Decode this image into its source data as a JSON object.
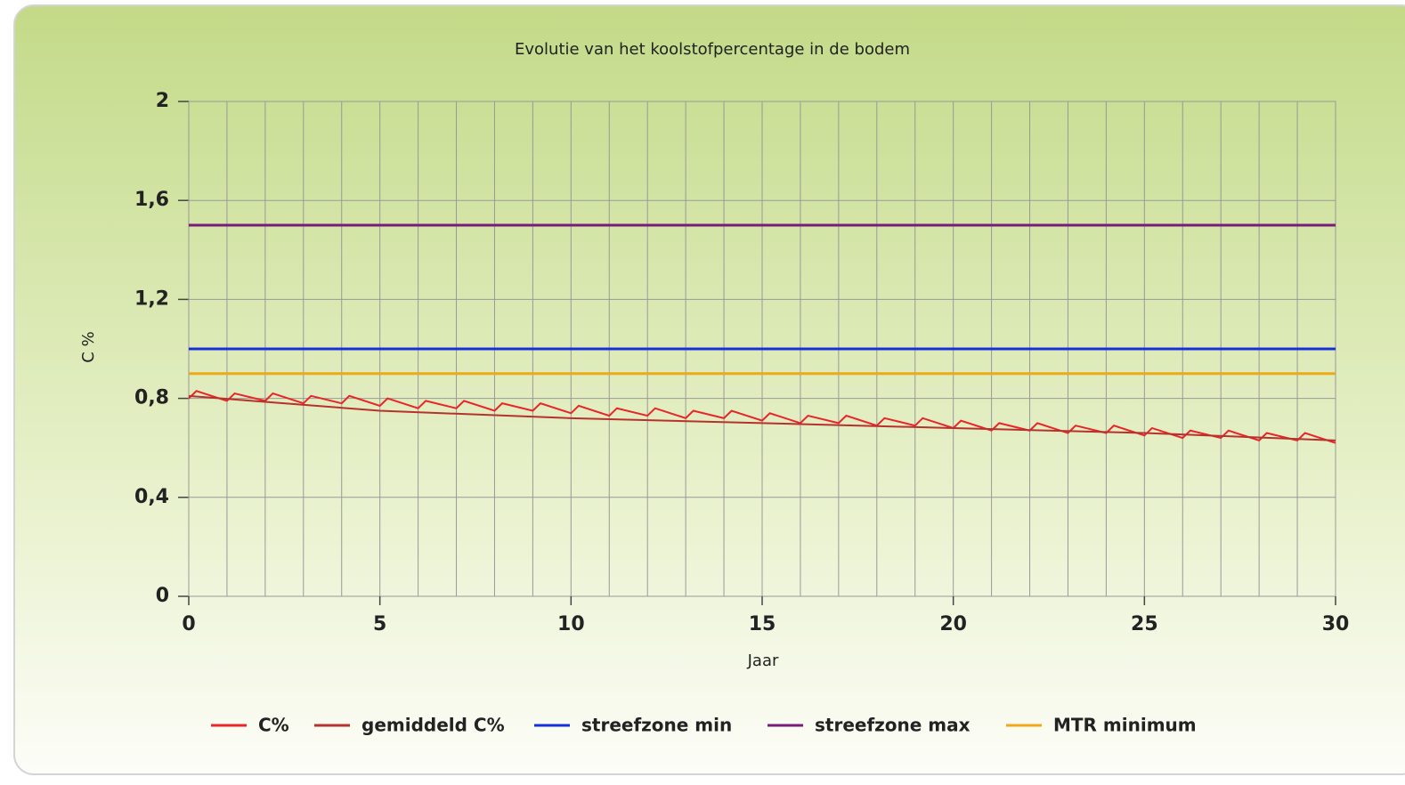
{
  "chart_data": {
    "type": "line",
    "title": "Evolutie van het koolstofpercentage in de bodem",
    "xlabel": "Jaar",
    "ylabel": "C %",
    "xlim": [
      0,
      30
    ],
    "xticks": [
      0,
      5,
      10,
      15,
      20,
      25,
      30
    ],
    "ylim": [
      0,
      2
    ],
    "yticks": [
      0,
      {
        "value": 0.4,
        "label": "0,4"
      },
      {
        "value": 0.8,
        "label": "0,8"
      },
      {
        "value": 1.2,
        "label": "1,2"
      },
      {
        "value": 1.6,
        "label": "1,6"
      },
      2
    ],
    "grid": true,
    "legend": "bottom",
    "series": [
      {
        "name": "C%",
        "color": "#e8262a",
        "x": [
          0,
          0.2,
          1,
          1.2,
          2,
          2.2,
          3,
          3.2,
          4,
          4.2,
          5,
          5.2,
          6,
          6.2,
          7,
          7.2,
          8,
          8.2,
          9,
          9.2,
          10,
          10.2,
          11,
          11.2,
          12,
          12.2,
          13,
          13.2,
          14,
          14.2,
          15,
          15.2,
          16,
          16.2,
          17,
          17.2,
          18,
          18.2,
          19,
          19.2,
          20,
          20.2,
          21,
          21.2,
          22,
          22.2,
          23,
          23.2,
          24,
          24.2,
          25,
          25.2,
          26,
          26.2,
          27,
          27.2,
          28,
          28.2,
          29,
          29.2,
          30
        ],
        "values": [
          0.8,
          0.83,
          0.79,
          0.82,
          0.79,
          0.82,
          0.78,
          0.81,
          0.78,
          0.81,
          0.77,
          0.8,
          0.76,
          0.79,
          0.76,
          0.79,
          0.75,
          0.78,
          0.75,
          0.78,
          0.74,
          0.77,
          0.73,
          0.76,
          0.73,
          0.76,
          0.72,
          0.75,
          0.72,
          0.75,
          0.71,
          0.74,
          0.7,
          0.73,
          0.7,
          0.73,
          0.69,
          0.72,
          0.69,
          0.72,
          0.68,
          0.71,
          0.67,
          0.7,
          0.67,
          0.7,
          0.66,
          0.69,
          0.66,
          0.69,
          0.65,
          0.68,
          0.64,
          0.67,
          0.64,
          0.67,
          0.63,
          0.66,
          0.63,
          0.66,
          0.62
        ]
      },
      {
        "name": "gemiddeld C%",
        "color": "#b5322d",
        "x": [
          0,
          5,
          10,
          15,
          20,
          25,
          30
        ],
        "values": [
          0.81,
          0.75,
          0.72,
          0.7,
          0.68,
          0.66,
          0.63
        ]
      },
      {
        "name": "streefzone min",
        "color": "#1530d8",
        "x": [
          0,
          30
        ],
        "values": [
          1.0,
          1.0
        ]
      },
      {
        "name": "streefzone max",
        "color": "#7a1a7a",
        "x": [
          0,
          30
        ],
        "values": [
          1.5,
          1.5
        ]
      },
      {
        "name": "MTR minimum",
        "color": "#f0a818",
        "x": [
          0,
          30
        ],
        "values": [
          0.9,
          0.9
        ]
      }
    ]
  }
}
